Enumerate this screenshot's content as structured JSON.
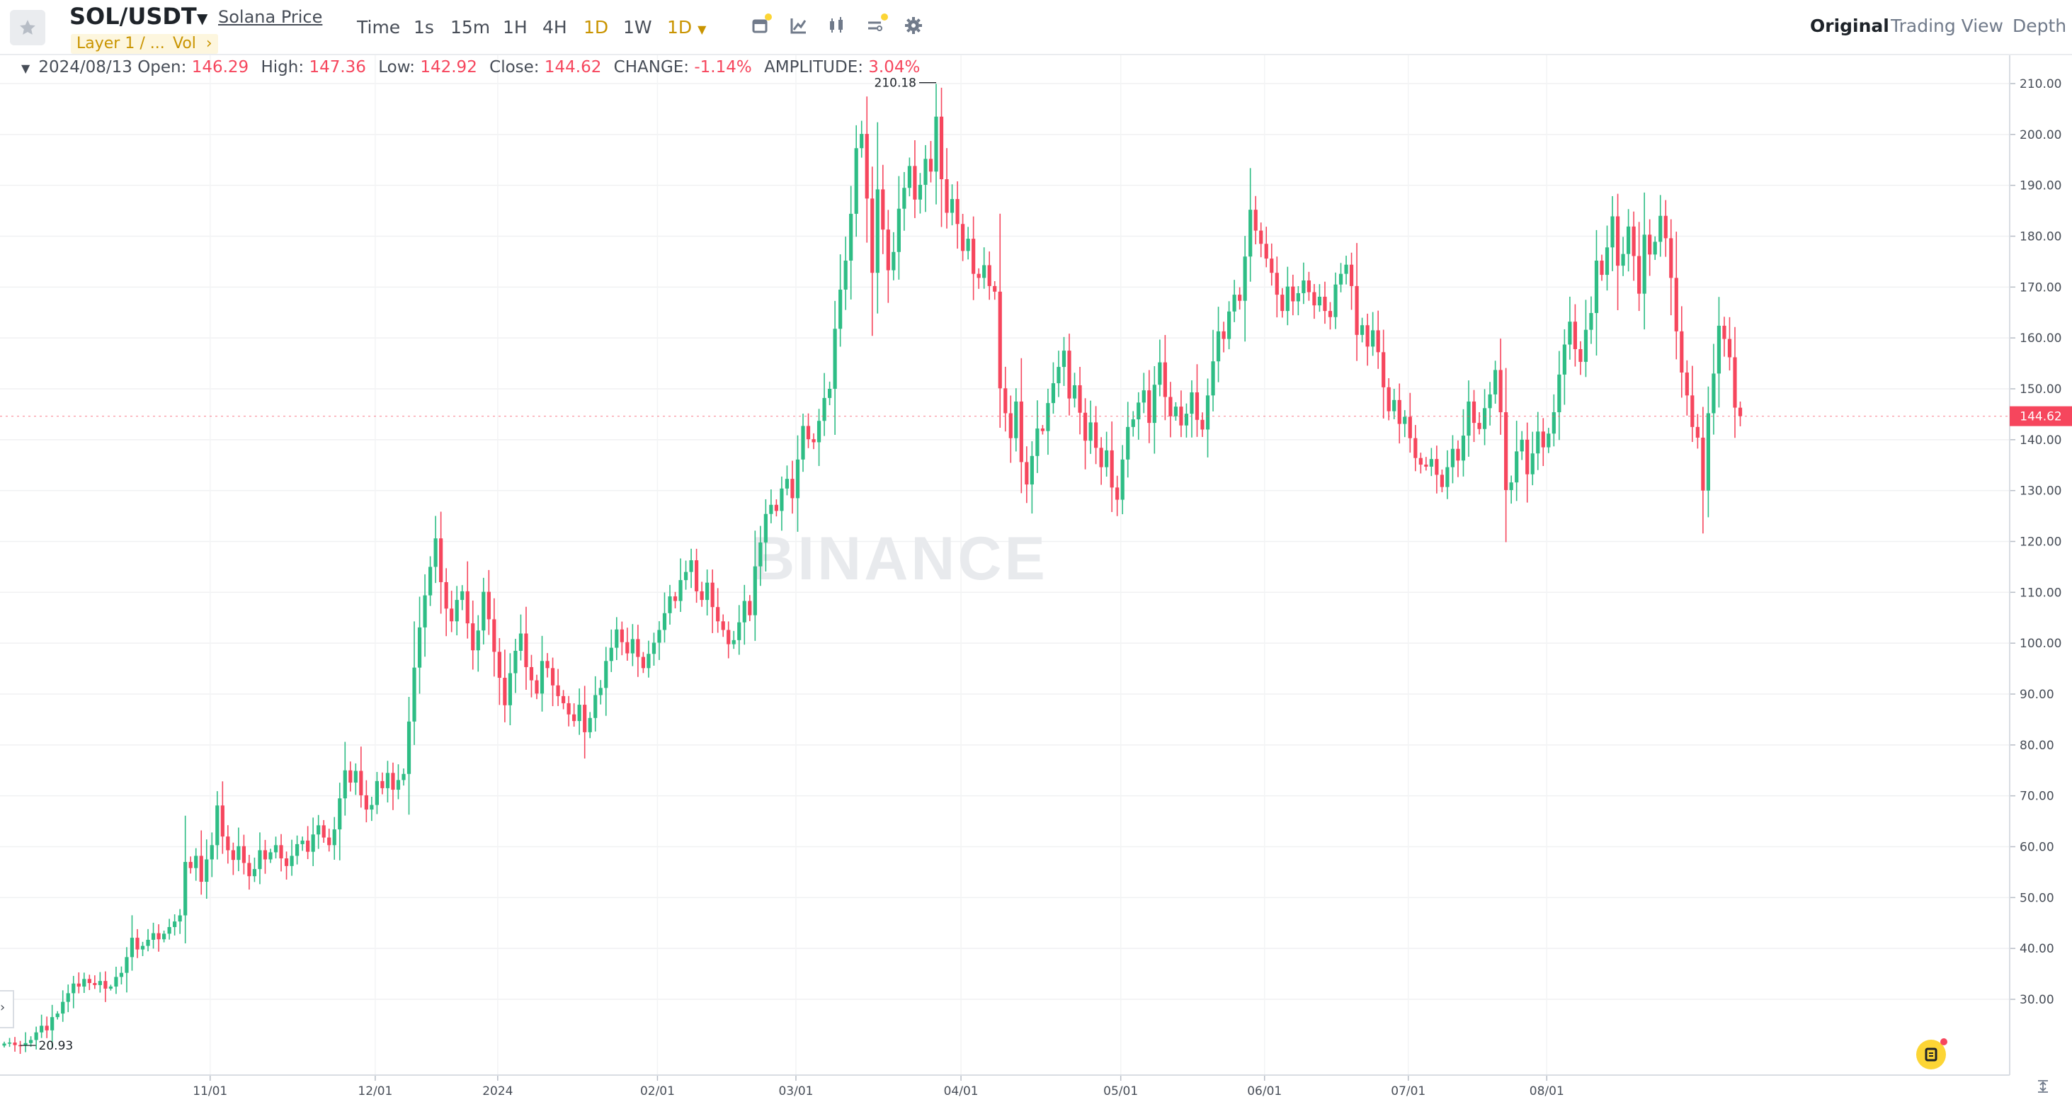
{
  "header": {
    "pair": "SOL/USDT",
    "price_link": "Solana Price",
    "tags": [
      "Layer 1 / ...",
      "Vol"
    ],
    "tag_more": "›",
    "timeframes": [
      {
        "label": "Time",
        "active": false
      },
      {
        "label": "1s",
        "active": false
      },
      {
        "label": "15m",
        "active": false
      },
      {
        "label": "1H",
        "active": false
      },
      {
        "label": "4H",
        "active": false
      },
      {
        "label": "1D",
        "active": true
      },
      {
        "label": "1W",
        "active": false
      }
    ],
    "timeframe_dropdown": "1D",
    "tools": [
      "calendar-icon",
      "indicator-icon",
      "candle-type-icon",
      "chart-settings-icon",
      "gear-icon"
    ],
    "views": [
      {
        "label": "Original",
        "active": true
      },
      {
        "label": "Trading View",
        "active": false
      },
      {
        "label": "Depth",
        "active": false
      }
    ]
  },
  "ohlc": {
    "date": "2024/08/13",
    "open_label": "Open:",
    "open": "146.29",
    "high_label": "High:",
    "high": "147.36",
    "low_label": "Low:",
    "low": "142.92",
    "close_label": "Close:",
    "close": "144.62",
    "change_label": "CHANGE:",
    "change": "-1.14%",
    "amplitude_label": "AMPLITUDE:",
    "amplitude": "3.04%"
  },
  "watermark": "BINANCE",
  "colors": {
    "up": "#2ebd85",
    "down": "#f6465d",
    "accent": "#c99400",
    "brand": "#fcd535"
  },
  "chart_data": {
    "type": "candlestick",
    "x_labels": [
      "11/01",
      "12/01",
      "2024",
      "02/01",
      "03/01",
      "04/01",
      "05/01",
      "06/01",
      "07/01",
      "08/01"
    ],
    "y_ticks": [
      "30.00",
      "40.00",
      "50.00",
      "60.00",
      "70.00",
      "80.00",
      "90.00",
      "100.00",
      "110.00",
      "120.00",
      "130.00",
      "140.00",
      "150.00",
      "160.00",
      "170.00",
      "180.00",
      "190.00",
      "200.00",
      "210.00"
    ],
    "ylim": [
      16,
      213
    ],
    "last_price": "144.62",
    "max_label": "210.18",
    "min_label": "20.93",
    "close": [
      21.3,
      21.5,
      21.0,
      20.9,
      21.4,
      22.0,
      23.5,
      24.8,
      23.9,
      26.5,
      27.2,
      29.5,
      31.2,
      33.1,
      32.5,
      34.0,
      33.2,
      32.8,
      33.6,
      32.1,
      32.5,
      34.4,
      35.2,
      38.3,
      42.1,
      39.8,
      40.5,
      41.7,
      43.0,
      41.8,
      42.9,
      44.2,
      45.3,
      46.5,
      57.0,
      55.8,
      58.2,
      53.1,
      57.5,
      60.3,
      68.1,
      62.0,
      59.3,
      57.4,
      60.1,
      56.8,
      54.2,
      55.6,
      59.3,
      57.5,
      58.9,
      60.3,
      57.7,
      56.2,
      58.2,
      60.5,
      61.2,
      59.0,
      62.4,
      64.2,
      61.8,
      60.3,
      63.4,
      69.5,
      75.0,
      72.6,
      74.9,
      70.1,
      67.3,
      68.2,
      72.9,
      71.5,
      74.5,
      71.2,
      73.1,
      74.3,
      84.6,
      95.2,
      103.1,
      109.4,
      115.0,
      120.6,
      112.0,
      106.8,
      104.3,
      108.5,
      110.2,
      103.9,
      98.6,
      102.5,
      110.1,
      104.7,
      98.3,
      93.2,
      87.8,
      94.1,
      98.5,
      101.9,
      95.3,
      92.7,
      90.1,
      96.5,
      95.1,
      91.7,
      89.6,
      88.2,
      86.0,
      84.7,
      87.9,
      82.5,
      85.3,
      89.8,
      91.2,
      96.5,
      99.1,
      102.7,
      100.2,
      98.0,
      100.8,
      97.3,
      95.1,
      97.9,
      100.1,
      102.6,
      105.9,
      109.2,
      108.3,
      112.4,
      114.0,
      116.3,
      110.2,
      108.5,
      111.9,
      107.1,
      104.3,
      102.6,
      99.8,
      100.6,
      104.1,
      108.3,
      105.5,
      115.1,
      119.8,
      125.4,
      127.2,
      126.0,
      130.4,
      132.3,
      128.5,
      136.1,
      142.7,
      140.1,
      139.5,
      143.7,
      148.2,
      150.0,
      161.8,
      169.5,
      175.2,
      184.4,
      197.3,
      200.1,
      187.4,
      172.8,
      189.2,
      181.3,
      173.3,
      176.9,
      185.4,
      189.5,
      193.8,
      187.2,
      190.1,
      195.2,
      192.7,
      203.5,
      191.2,
      184.6,
      187.3,
      182.4,
      177.1,
      179.5,
      172.6,
      171.8,
      174.3,
      170.2,
      169.1,
      150.1,
      145.2,
      140.3,
      147.5,
      135.6,
      131.2,
      136.8,
      142.2,
      141.7,
      147.2,
      151.1,
      154.3,
      157.5,
      148.1,
      150.7,
      145.3,
      139.8,
      143.4,
      138.4,
      134.6,
      137.9,
      130.6,
      128.2,
      136.1,
      142.5,
      144.0,
      147.3,
      149.7,
      143.3,
      150.8,
      155.2,
      148.4,
      144.6,
      146.5,
      142.8,
      145.1,
      149.3,
      143.9,
      142.0,
      148.7,
      155.4,
      161.3,
      159.8,
      165.2,
      168.5,
      167.3,
      176.0,
      185.2,
      181.1,
      178.5,
      175.6,
      172.8,
      168.5,
      165.3,
      170.1,
      167.2,
      168.8,
      171.3,
      169.0,
      166.4,
      168.1,
      165.3,
      164.1,
      170.5,
      172.6,
      174.4,
      170.2,
      160.6,
      162.5,
      158.3,
      161.5,
      157.2,
      150.3,
      145.6,
      147.8,
      143.1,
      144.5,
      140.3,
      136.4,
      135.1,
      134.7,
      136.2,
      133.1,
      130.7,
      134.6,
      138.2,
      135.9,
      140.8,
      147.5,
      143.3,
      142.1,
      146.2,
      148.9,
      153.7,
      145.4,
      130.1,
      131.6,
      137.7,
      140.0,
      133.2,
      137.3,
      141.6,
      138.5,
      141.2,
      145.4,
      152.8,
      158.7,
      163.2,
      157.8,
      155.3,
      161.6,
      164.9,
      175.2,
      172.4,
      177.8,
      183.9,
      174.2,
      176.5,
      181.9,
      176.1,
      168.7,
      180.3,
      176.4,
      178.9,
      184.0,
      179.6,
      171.8,
      161.3,
      153.2,
      148.7,
      142.5,
      140.4,
      130.0,
      145.2,
      153.0,
      162.4,
      159.8,
      156.2,
      146.3,
      144.62
    ],
    "open": [
      20.9,
      21.3,
      21.5,
      21.0,
      20.9,
      21.4,
      22.0,
      23.5,
      24.8,
      23.9,
      26.5,
      27.2,
      29.5,
      31.2,
      33.1,
      32.5,
      34.0,
      33.2,
      32.8,
      33.6,
      32.1,
      32.5,
      34.4,
      35.2,
      38.3,
      42.1,
      39.8,
      40.5,
      41.7,
      43.0,
      41.8,
      42.9,
      44.2,
      45.3,
      46.5,
      57.0,
      55.8,
      58.2,
      53.1,
      57.5,
      60.3,
      68.1,
      62.0,
      59.3,
      57.4,
      60.1,
      56.8,
      54.2,
      55.6,
      59.3,
      57.5,
      58.9,
      60.3,
      57.7,
      56.2,
      58.2,
      60.5,
      61.2,
      59.0,
      62.4,
      64.2,
      61.8,
      60.3,
      63.4,
      69.5,
      75.0,
      72.6,
      74.9,
      70.1,
      67.3,
      68.2,
      72.9,
      71.5,
      74.5,
      71.2,
      73.1,
      74.3,
      84.6,
      95.2,
      103.1,
      109.4,
      115.0,
      120.6,
      112.0,
      106.8,
      104.3,
      108.5,
      110.2,
      103.9,
      98.6,
      102.5,
      110.1,
      104.7,
      98.3,
      93.2,
      87.8,
      94.1,
      98.5,
      101.9,
      95.3,
      92.7,
      90.1,
      96.5,
      95.1,
      91.7,
      89.6,
      88.2,
      86.0,
      84.7,
      87.9,
      82.5,
      85.3,
      89.8,
      91.2,
      96.5,
      99.1,
      102.7,
      100.2,
      98.0,
      100.8,
      97.3,
      95.1,
      97.9,
      100.1,
      102.6,
      105.9,
      109.2,
      108.3,
      112.4,
      114.0,
      116.3,
      110.2,
      108.5,
      111.9,
      107.1,
      104.3,
      102.6,
      99.8,
      100.6,
      104.1,
      108.3,
      105.5,
      115.1,
      119.8,
      125.4,
      127.2,
      126.0,
      130.4,
      132.3,
      128.5,
      136.1,
      142.7,
      140.1,
      139.5,
      143.7,
      148.2,
      150.0,
      161.8,
      169.5,
      175.2,
      184.4,
      197.3,
      200.1,
      187.4,
      172.8,
      189.2,
      181.3,
      173.3,
      176.9,
      185.4,
      189.5,
      193.8,
      187.2,
      190.1,
      195.2,
      192.7,
      203.5,
      191.2,
      184.6,
      187.3,
      182.4,
      177.1,
      179.5,
      172.6,
      171.8,
      174.3,
      170.2,
      169.1,
      150.1,
      145.2,
      140.3,
      147.5,
      135.6,
      131.2,
      136.8,
      142.2,
      141.7,
      147.2,
      151.1,
      154.3,
      157.5,
      148.1,
      150.7,
      145.3,
      139.8,
      143.4,
      138.4,
      134.6,
      137.9,
      130.6,
      128.2,
      136.1,
      142.5,
      144.0,
      147.3,
      149.7,
      143.3,
      150.8,
      155.2,
      148.4,
      144.6,
      146.5,
      142.8,
      145.1,
      149.3,
      143.9,
      142.0,
      148.7,
      155.4,
      161.3,
      159.8,
      165.2,
      168.5,
      167.3,
      176.0,
      185.2,
      181.1,
      178.5,
      175.6,
      172.8,
      168.5,
      165.3,
      170.1,
      167.2,
      168.8,
      171.3,
      169.0,
      166.4,
      168.1,
      165.3,
      164.1,
      170.5,
      172.6,
      174.4,
      170.2,
      160.6,
      162.5,
      158.3,
      161.5,
      157.2,
      150.3,
      145.6,
      147.8,
      143.1,
      144.5,
      140.3,
      136.4,
      135.1,
      134.7,
      136.2,
      133.1,
      130.7,
      134.6,
      138.2,
      135.9,
      140.8,
      147.5,
      143.3,
      142.1,
      146.2,
      148.9,
      153.7,
      145.4,
      130.1,
      131.6,
      137.7,
      140.0,
      133.2,
      137.3,
      141.6,
      138.5,
      141.2,
      145.4,
      152.8,
      158.7,
      163.2,
      157.8,
      155.3,
      161.6,
      164.9,
      175.2,
      172.4,
      177.8,
      183.9,
      174.2,
      176.5,
      181.9,
      176.1,
      168.7,
      180.3,
      176.4,
      178.9,
      184.0,
      179.6,
      171.8,
      161.3,
      153.2,
      148.7,
      142.5,
      140.4,
      130.0,
      145.2,
      153.0,
      162.4,
      159.8,
      156.2,
      146.29
    ]
  }
}
